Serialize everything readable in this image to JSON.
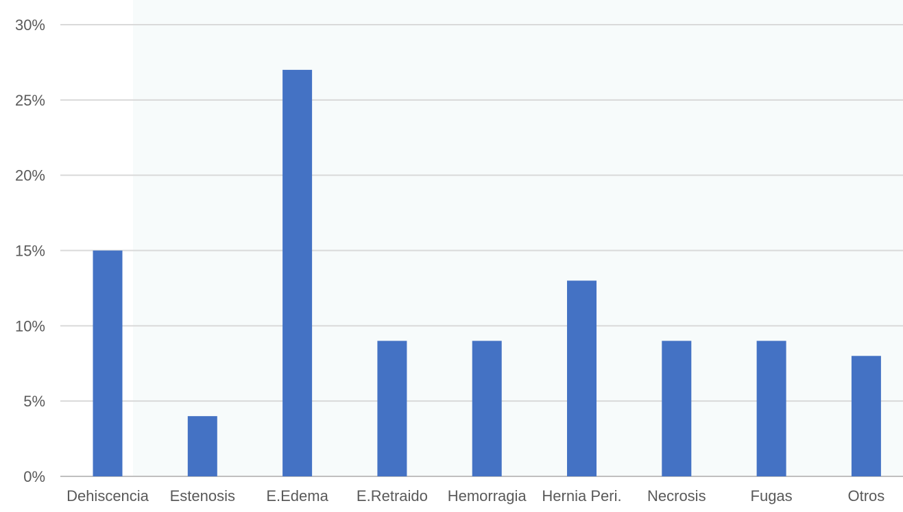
{
  "chart_data": {
    "type": "bar",
    "title": "",
    "xlabel": "",
    "ylabel": "",
    "categories": [
      "Dehiscencia",
      "Estenosis",
      "E.Edema",
      "E.Retraido",
      "Hemorragia",
      "Hernia Peri.",
      "Necrosis",
      "Fugas",
      "Otros"
    ],
    "series": [
      {
        "values": [
          15,
          4,
          27,
          9,
          9,
          13,
          9,
          9,
          8
        ],
        "color": "#4472C4"
      }
    ],
    "ylim": [
      0,
      30
    ],
    "yticks": [
      0,
      5,
      10,
      15,
      20,
      25,
      30
    ],
    "ytick_labels": [
      "0%",
      "5%",
      "10%",
      "15%",
      "20%",
      "25%",
      "30%"
    ],
    "grid": true,
    "legend": "none",
    "colors": {
      "bar": "#4472C4",
      "grid": "#d9d9d9",
      "axis": "#bfbfbf",
      "text": "#595959",
      "plot_tint": "#f7fbfb"
    }
  }
}
